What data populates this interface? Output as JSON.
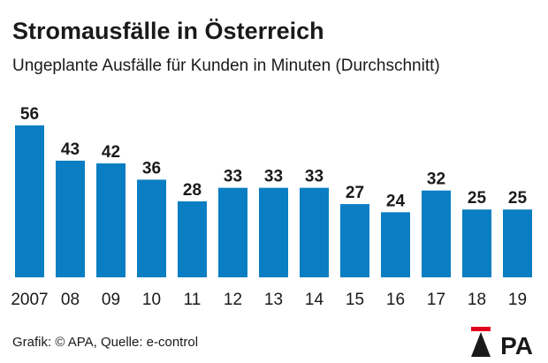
{
  "header": {
    "title": "Stromausfälle in Österreich",
    "subtitle": "Ungeplante Ausfälle für Kunden in Minuten (Durchschnitt)"
  },
  "footer": {
    "credit": "Grafik: © APA, Quelle: e-control",
    "logo_text": "APA"
  },
  "colors": {
    "bar": "#0a7ec2",
    "text": "#1a1a1a",
    "logo_accent": "#e2001a"
  },
  "chart_data": {
    "type": "bar",
    "categories": [
      "2007",
      "08",
      "09",
      "10",
      "11",
      "12",
      "13",
      "14",
      "15",
      "16",
      "17",
      "18",
      "19"
    ],
    "values": [
      56,
      43,
      42,
      36,
      28,
      33,
      33,
      33,
      27,
      24,
      32,
      25,
      25
    ],
    "title": "Stromausfälle in Österreich",
    "subtitle": "Ungeplante Ausfälle für Kunden in Minuten (Durchschnitt)",
    "xlabel": "",
    "ylabel": "",
    "ylim": [
      0,
      56
    ],
    "grid": false,
    "legend": "none",
    "data_labels": true
  }
}
